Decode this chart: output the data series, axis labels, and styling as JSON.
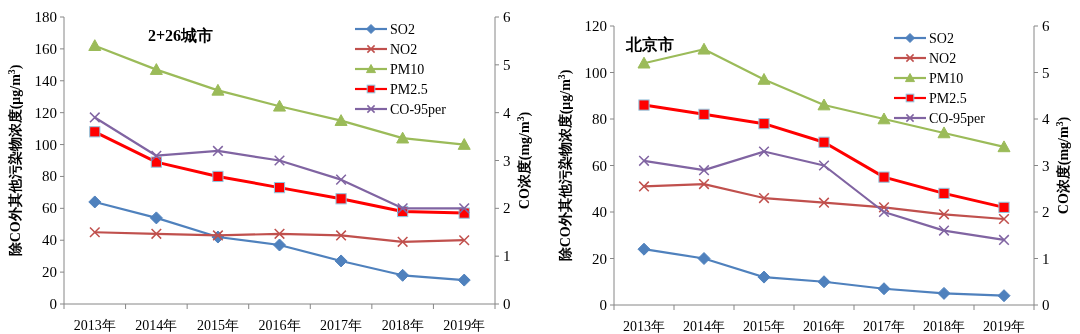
{
  "chart_data": [
    {
      "type": "line",
      "title": "2+26城市",
      "categories": [
        "2013年",
        "2014年",
        "2015年",
        "2016年",
        "2017年",
        "2018年",
        "2019年"
      ],
      "ylabel": "除CO外其他污染物浓度(μg/m$^{3}$)",
      "y2label": "CO浓度(mg/m$^{3}$)",
      "ylim": [
        0,
        180
      ],
      "yticks": [
        0,
        20,
        40,
        60,
        80,
        100,
        120,
        140,
        160,
        180
      ],
      "y2lim": [
        0,
        6
      ],
      "y2ticks": [
        0,
        1,
        2,
        3,
        4,
        5,
        6
      ],
      "legend": "top right",
      "grid": false,
      "series": [
        {
          "name": "SO2",
          "color": "#4f81bd",
          "marker": "diamond",
          "values": [
            64,
            54,
            42,
            37,
            27,
            18,
            15
          ]
        },
        {
          "name": "NO2",
          "color": "#c0504d",
          "marker": "cross",
          "values": [
            45,
            44,
            43,
            44,
            43,
            39,
            40
          ]
        },
        {
          "name": "PM10",
          "color": "#9bbb59",
          "marker": "triangle",
          "values": [
            162,
            147,
            134,
            124,
            115,
            104,
            100
          ]
        },
        {
          "name": "PM2.5",
          "color": "#ff0000",
          "marker": "square",
          "values": [
            108,
            89,
            80,
            73,
            66,
            58,
            57
          ]
        },
        {
          "name": "CO-95per",
          "color": "#8064a2",
          "marker": "cross",
          "axis": "y2",
          "values": [
            3.9,
            3.1,
            3.2,
            3.0,
            2.6,
            2.0,
            2.0
          ]
        }
      ]
    },
    {
      "type": "line",
      "title": "北京市",
      "categories": [
        "2013年",
        "2014年",
        "2015年",
        "2016年",
        "2017年",
        "2018年",
        "2019年"
      ],
      "ylabel": "除CO外其他污染物浓度(μg/m$^{3}$)",
      "y2label": "CO浓度(mg/m$^{3}$)",
      "ylim": [
        0,
        120
      ],
      "yticks": [
        0,
        20,
        40,
        60,
        80,
        100,
        120
      ],
      "y2lim": [
        0,
        6
      ],
      "y2ticks": [
        0,
        1,
        2,
        3,
        4,
        5,
        6
      ],
      "legend": "top right",
      "grid": false,
      "series": [
        {
          "name": "SO2",
          "color": "#4f81bd",
          "marker": "diamond",
          "values": [
            24,
            20,
            12,
            10,
            7,
            5,
            4
          ]
        },
        {
          "name": "NO2",
          "color": "#c0504d",
          "marker": "cross",
          "values": [
            51,
            52,
            46,
            44,
            42,
            39,
            37
          ]
        },
        {
          "name": "PM10",
          "color": "#9bbb59",
          "marker": "triangle",
          "values": [
            104,
            110,
            97,
            86,
            80,
            74,
            68
          ]
        },
        {
          "name": "PM2.5",
          "color": "#ff0000",
          "marker": "square",
          "values": [
            86,
            82,
            78,
            70,
            55,
            48,
            42
          ]
        },
        {
          "name": "CO-95per",
          "color": "#8064a2",
          "marker": "cross",
          "axis": "y2",
          "values": [
            3.1,
            2.9,
            3.3,
            3.0,
            2.0,
            1.6,
            1.4
          ]
        }
      ]
    }
  ]
}
